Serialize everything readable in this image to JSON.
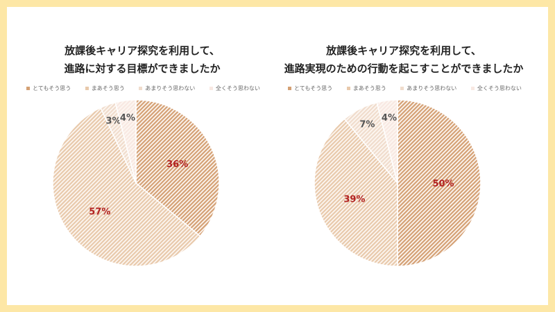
{
  "legend_labels": [
    "とてもそう思う",
    "まあそう思う",
    "あまりそう思わない",
    "全くそう思わない"
  ],
  "colors": {
    "border": "#fde7a6",
    "slice_strong": "#d4a074",
    "slice_medium": "#e8c9ab",
    "slice_light": "#f0dccc",
    "slice_faint": "#f8e8e2",
    "label_accent": "#b22222",
    "label_dark": "#555555"
  },
  "chart_data": [
    {
      "type": "pie",
      "title_lines": [
        "放課後キャリア探究を利用して、",
        "進路に対する目標ができましたか"
      ],
      "labels": [
        "とてもそう思う",
        "まあそう思う",
        "あまりそう思わない",
        "全くそう思わない"
      ],
      "values": [
        36,
        57,
        3,
        4
      ],
      "value_labels": [
        "36%",
        "57%",
        "3%",
        "4%"
      ]
    },
    {
      "type": "pie",
      "title_lines": [
        "放課後キャリア探究を利用して、",
        "進路実現のための行動を起こすことができましたか"
      ],
      "labels": [
        "とてもそう思う",
        "まあそう思う",
        "あまりそう思わない",
        "全くそう思わない"
      ],
      "values": [
        50,
        39,
        7,
        4
      ],
      "value_labels": [
        "50%",
        "39%",
        "7%",
        "4%"
      ]
    }
  ]
}
